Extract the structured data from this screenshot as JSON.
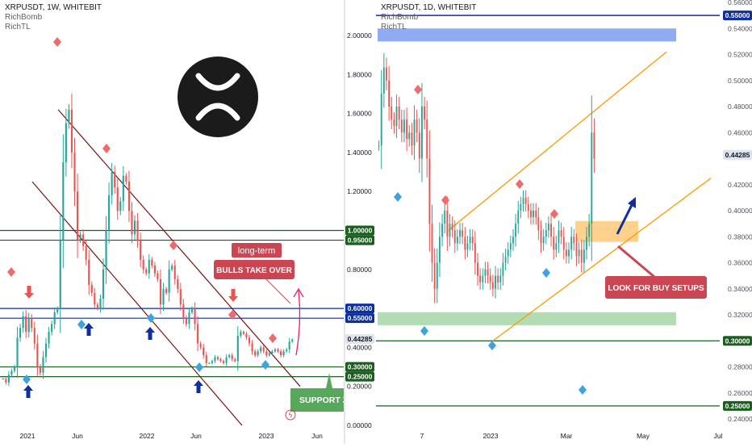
{
  "colors": {
    "up": "#26a69a",
    "down": "#ef5350",
    "blue_line": "#0d2fa0",
    "green_line": "#1b5e20",
    "red_line": "#7b1212",
    "orange_line": "#ff9800",
    "annotation_red": "#c94652",
    "annotation_green": "#58a85c",
    "blue_marker": "#3ba3e0",
    "red_marker": "#ef6b6b",
    "arrow_navy": "#0d2fa0"
  },
  "left": {
    "header": {
      "title": "XRPUSDT, 1W, WHITEBIT",
      "indicator1": "RichBomb",
      "indicator2": "RichTL"
    },
    "logo": {
      "icon": "ripple-x-logo"
    },
    "annotations": {
      "longterm": "long-term",
      "bulls": "BULLS TAKE OVER",
      "support": "SUPPORT ZO"
    },
    "lightning_icon": "lightning-icon"
  },
  "right": {
    "header": {
      "title": "XRPUSDT, 1D, WHITEBIT",
      "indicator1": "RichBomb",
      "indicator2": "RichTL"
    },
    "annotations": {
      "buy": "LOOK FOR BUY SETUPS"
    }
  },
  "chart_data": [
    {
      "type": "candlestick",
      "title": "XRPUSDT, 1W, WHITEBIT",
      "x_tick_labels": [
        "2021",
        "Jun",
        "2022",
        "Jun",
        "2023",
        "Jun"
      ],
      "y_tick_labels": [
        "2.00000",
        "1.80000",
        "1.60000",
        "1.40000",
        "1.20000",
        "0.80000",
        "0.40000",
        "0.20000",
        "0.00000"
      ],
      "y_range": [
        0.0,
        2.1
      ],
      "price_badges": [
        {
          "label": "1.00000",
          "value": 1.0,
          "color": "#1b5e20"
        },
        {
          "label": "0.95000",
          "value": 0.95,
          "color": "#1b5e20"
        },
        {
          "label": "0.60000",
          "value": 0.6,
          "color": "#0d2fa0"
        },
        {
          "label": "0.55000",
          "value": 0.55,
          "color": "#0d2fa0"
        },
        {
          "label": "0.44285",
          "value": 0.44285,
          "color": "#e0e3eb"
        },
        {
          "label": "0.30000",
          "value": 0.3,
          "color": "#1b5e20"
        },
        {
          "label": "0.25000",
          "value": 0.25,
          "color": "#1b5e20"
        }
      ],
      "horizontal_levels": [
        1.0,
        0.95,
        0.6,
        0.55,
        0.3,
        0.25
      ],
      "series": [
        {
          "name": "XRPUSDT weekly close",
          "values": [
            0.24,
            0.22,
            0.26,
            0.28,
            0.3,
            0.45,
            0.5,
            0.56,
            0.48,
            0.55,
            0.5,
            0.42,
            0.3,
            0.27,
            0.35,
            0.42,
            0.48,
            0.52,
            0.58,
            0.6,
            0.95,
            1.35,
            1.55,
            1.62,
            1.4,
            1.2,
            0.95,
            0.98,
            0.92,
            0.85,
            0.72,
            0.68,
            0.62,
            0.6,
            0.65,
            0.8,
            1.0,
            1.18,
            1.3,
            1.22,
            1.1,
            1.15,
            1.28,
            1.25,
            1.1,
            0.98,
            1.05,
            0.95,
            0.85,
            0.8,
            0.78,
            0.85,
            0.82,
            0.78,
            0.75,
            0.62,
            0.7,
            0.68,
            0.8,
            0.82,
            0.75,
            0.7,
            0.62,
            0.55,
            0.52,
            0.58,
            0.6,
            0.52,
            0.42,
            0.4,
            0.36,
            0.32,
            0.32,
            0.33,
            0.35,
            0.34,
            0.33,
            0.32,
            0.35,
            0.36,
            0.34,
            0.33,
            0.46,
            0.48,
            0.47,
            0.45,
            0.42,
            0.38,
            0.36,
            0.38,
            0.4,
            0.38,
            0.36,
            0.37,
            0.38,
            0.39,
            0.38,
            0.36,
            0.38,
            0.39,
            0.43,
            0.44
          ]
        }
      ]
    },
    {
      "type": "candlestick",
      "title": "XRPUSDT, 1D, WHITEBIT",
      "x_tick_labels": [
        "7",
        "2023",
        "Mar",
        "May",
        "Jul"
      ],
      "y_tick_labels": [
        "0.56000",
        "0.54000",
        "0.52000",
        "0.50000",
        "0.48000",
        "0.46000",
        "0.42000",
        "0.40000",
        "0.38000",
        "0.36000",
        "0.34000",
        "0.32000",
        "0.28000",
        "0.26000",
        "0.24000"
      ],
      "y_range": [
        0.236,
        0.565
      ],
      "price_badges": [
        {
          "label": "0.55000",
          "value": 0.55,
          "color": "#0d2fa0"
        },
        {
          "label": "0.44285",
          "value": 0.44285,
          "color": "#e0e3eb"
        },
        {
          "label": "0.30000",
          "value": 0.3,
          "color": "#1b5e20"
        },
        {
          "label": "0.25000",
          "value": 0.25,
          "color": "#1b5e20"
        }
      ],
      "horizontal_levels": [
        0.55,
        0.3,
        0.25
      ],
      "zones": [
        {
          "name": "resistance zone",
          "from": 0.53,
          "to": 0.54
        },
        {
          "name": "support zone",
          "from": 0.312,
          "to": 0.322
        },
        {
          "name": "buy zone",
          "from": 0.376,
          "to": 0.392
        }
      ],
      "series": [
        {
          "name": "XRPUSDT daily close",
          "values": [
            0.45,
            0.49,
            0.51,
            0.5,
            0.48,
            0.47,
            0.465,
            0.48,
            0.47,
            0.46,
            0.47,
            0.455,
            0.46,
            0.45,
            0.47,
            0.46,
            0.44,
            0.48,
            0.47,
            0.44,
            0.39,
            0.36,
            0.34,
            0.36,
            0.38,
            0.39,
            0.4,
            0.38,
            0.39,
            0.385,
            0.375,
            0.38,
            0.385,
            0.38,
            0.37,
            0.375,
            0.38,
            0.375,
            0.36,
            0.35,
            0.345,
            0.35,
            0.355,
            0.35,
            0.345,
            0.34,
            0.35,
            0.345,
            0.35,
            0.36,
            0.365,
            0.37,
            0.375,
            0.38,
            0.39,
            0.4,
            0.405,
            0.41,
            0.405,
            0.4,
            0.395,
            0.4,
            0.395,
            0.385,
            0.375,
            0.38,
            0.385,
            0.39,
            0.38,
            0.37,
            0.375,
            0.385,
            0.38,
            0.37,
            0.365,
            0.37,
            0.38,
            0.375,
            0.365,
            0.37,
            0.36,
            0.37,
            0.38,
            0.39,
            0.46,
            0.44
          ]
        }
      ]
    }
  ]
}
